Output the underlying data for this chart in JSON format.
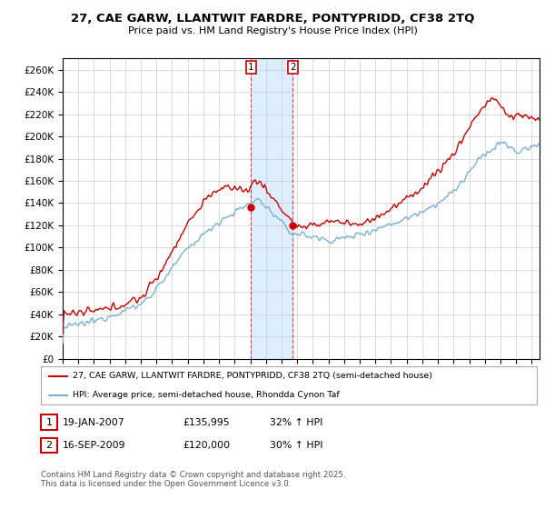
{
  "title": "27, CAE GARW, LLANTWIT FARDRE, PONTYPRIDD, CF38 2TQ",
  "subtitle": "Price paid vs. HM Land Registry's House Price Index (HPI)",
  "ylim": [
    0,
    270000
  ],
  "yticks": [
    0,
    20000,
    40000,
    60000,
    80000,
    100000,
    120000,
    140000,
    160000,
    180000,
    200000,
    220000,
    240000,
    260000
  ],
  "ytick_labels": [
    "£0",
    "£20K",
    "£40K",
    "£60K",
    "£80K",
    "£100K",
    "£120K",
    "£140K",
    "£160K",
    "£180K",
    "£200K",
    "£220K",
    "£240K",
    "£260K"
  ],
  "xlim_start": 1995.0,
  "xlim_end": 2025.5,
  "line1_color": "#cc0000",
  "line2_color": "#7ab0d4",
  "shade_color": "#ddeeff",
  "dashed_line_color": "#dd4444",
  "marker1_x": 2007.05,
  "marker1_y": 135995,
  "marker2_x": 2009.72,
  "marker2_y": 120000,
  "shade_start": 2007.05,
  "shade_end": 2009.72,
  "legend_line1": "27, CAE GARW, LLANTWIT FARDRE, PONTYPRIDD, CF38 2TQ (semi-detached house)",
  "legend_line2": "HPI: Average price, semi-detached house, Rhondda Cynon Taf",
  "table_row1": [
    "1",
    "19-JAN-2007",
    "£135,995",
    "32% ↑ HPI"
  ],
  "table_row2": [
    "2",
    "16-SEP-2009",
    "£120,000",
    "30% ↑ HPI"
  ],
  "footer": "Contains HM Land Registry data © Crown copyright and database right 2025.\nThis data is licensed under the Open Government Licence v3.0.",
  "background_color": "#ffffff",
  "grid_color": "#cccccc",
  "title_fontsize": 9.5,
  "subtitle_fontsize": 8.5
}
